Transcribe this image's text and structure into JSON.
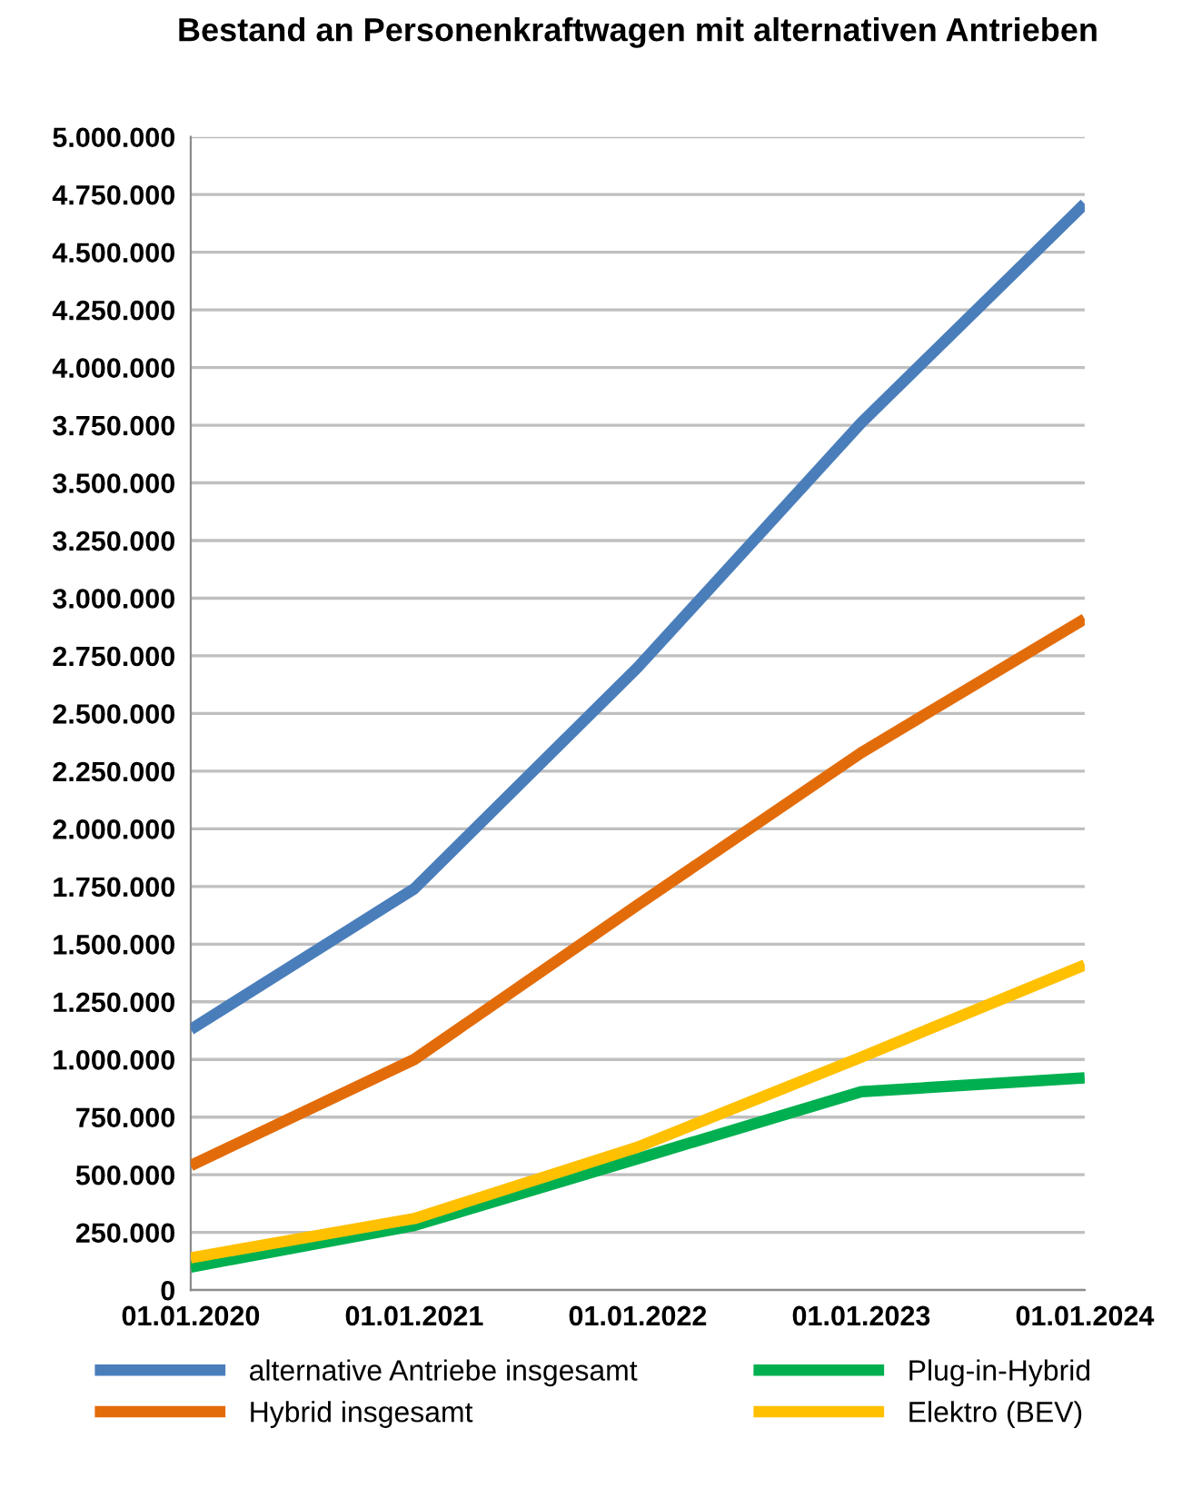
{
  "chart_data": {
    "type": "line",
    "title": "Bestand an Personenkraftwagen mit alternativen Antrieben",
    "categories": [
      "01.01.2020",
      "01.01.2021",
      "01.01.2022",
      "01.01.2023",
      "01.01.2024"
    ],
    "series": [
      {
        "name": "alternative Antriebe insgesamt",
        "color": "#4a7ebb",
        "values": [
          1130000,
          1740000,
          2700000,
          3760000,
          4710000
        ]
      },
      {
        "name": "Hybrid insgesamt",
        "color": "#e36c0a",
        "values": [
          540000,
          1000000,
          1670000,
          2330000,
          2910000
        ]
      },
      {
        "name": "Plug-in-Hybrid",
        "color": "#00b050",
        "values": [
          100000,
          280000,
          570000,
          860000,
          920000
        ]
      },
      {
        "name": "Elektro (BEV)",
        "color": "#ffc000",
        "values": [
          140000,
          310000,
          620000,
          1010000,
          1410000
        ]
      }
    ],
    "ylim": [
      0,
      5000000
    ],
    "yticks": [
      {
        "value": 0,
        "label": "0"
      },
      {
        "value": 250000,
        "label": "250.000"
      },
      {
        "value": 500000,
        "label": "500.000"
      },
      {
        "value": 750000,
        "label": "750.000"
      },
      {
        "value": 1000000,
        "label": "1.000.000"
      },
      {
        "value": 1250000,
        "label": "1.250.000"
      },
      {
        "value": 1500000,
        "label": "1.500.000"
      },
      {
        "value": 1750000,
        "label": "1.750.000"
      },
      {
        "value": 2000000,
        "label": "2.000.000"
      },
      {
        "value": 2250000,
        "label": "2.250.000"
      },
      {
        "value": 2500000,
        "label": "2.500.000"
      },
      {
        "value": 2750000,
        "label": "2.750.000"
      },
      {
        "value": 3000000,
        "label": "3.000.000"
      },
      {
        "value": 3250000,
        "label": "3.250.000"
      },
      {
        "value": 3500000,
        "label": "3.500.000"
      },
      {
        "value": 3750000,
        "label": "3.750.000"
      },
      {
        "value": 4000000,
        "label": "4.000.000"
      },
      {
        "value": 4250000,
        "label": "4.250.000"
      },
      {
        "value": 4500000,
        "label": "4.500.000"
      },
      {
        "value": 4750000,
        "label": "4.750.000"
      },
      {
        "value": 5000000,
        "label": "5.000.000"
      }
    ],
    "grid": "y",
    "legend": "bottom",
    "line_style": "solid"
  }
}
